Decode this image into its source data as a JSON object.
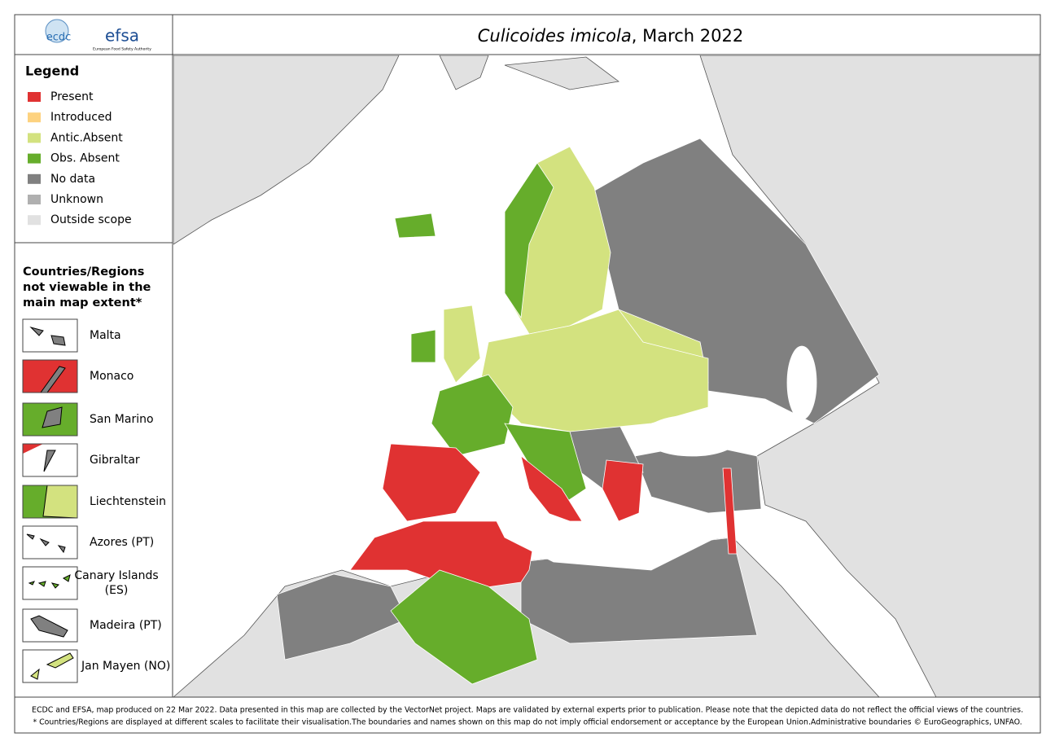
{
  "header": {
    "logo_left": "ecdc",
    "logo_right": "efsa",
    "logo_right_sub": "European Food Safety Authority",
    "title_italic": "Culicoides imicola",
    "title_rest": ", March 2022"
  },
  "legend": {
    "title": "Legend",
    "items": [
      {
        "label": "Present",
        "color": "#e03232"
      },
      {
        "label": "Introduced",
        "color": "#fdd27f"
      },
      {
        "label": "Antic.Absent",
        "color": "#d3e27f"
      },
      {
        "label": "Obs. Absent",
        "color": "#66ad2b"
      },
      {
        "label": "No data",
        "color": "#808080"
      },
      {
        "label": "Unknown",
        "color": "#b0b0b0"
      },
      {
        "label": "Outside scope",
        "color": "#e1e1e1"
      }
    ]
  },
  "insets": {
    "title_lines": [
      "Countries/Regions",
      "not viewable in the",
      "main map extent*"
    ],
    "items": [
      [
        "Malta"
      ],
      [
        "Monaco"
      ],
      [
        "San Marino"
      ],
      [
        "Gibraltar"
      ],
      [
        "Liechtenstein"
      ],
      [
        "Azores (PT)"
      ],
      [
        "Canary Islands",
        "(ES)"
      ],
      [
        "Madeira (PT)"
      ],
      [
        "Jan Mayen (NO)"
      ]
    ]
  },
  "footer": [
    "ECDC and EFSA, map produced on 22 Mar 2022. Data presented in this map are collected by the VectorNet project. Maps are validated by external experts prior to publication. Please note that the depicted data do not reflect the official views of the countries.",
    "* Countries/Regions are displayed at different scales to facilitate their visualisation.The boundaries and names shown on this map do not imply official endorsement or acceptance by the European Union.Administrative boundaries © EuroGeographics, UNFAO."
  ]
}
